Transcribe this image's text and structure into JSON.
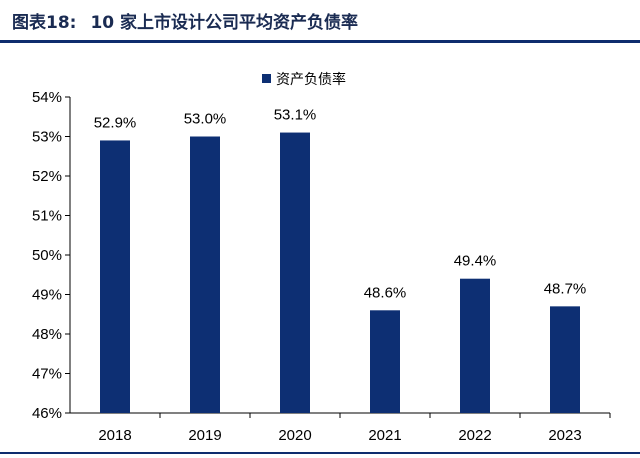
{
  "header": {
    "label": "图表18:",
    "title": "10 家上市设计公司平均资产负债率"
  },
  "colors": {
    "bar": "#0d2f73",
    "header": "#1a2b52",
    "axis": "#000000"
  },
  "chart_data": {
    "type": "bar",
    "title": "",
    "xlabel": "",
    "ylabel": "",
    "categories": [
      "2018",
      "2019",
      "2020",
      "2021",
      "2022",
      "2023"
    ],
    "series": [
      {
        "name": "资产负债率",
        "values": [
          52.9,
          53.0,
          53.1,
          48.6,
          49.4,
          48.7
        ]
      }
    ],
    "data_labels": [
      "52.9%",
      "53.0%",
      "53.1%",
      "48.6%",
      "49.4%",
      "48.7%"
    ],
    "ylim": [
      46,
      54
    ],
    "yticks": [
      46,
      47,
      48,
      49,
      50,
      51,
      52,
      53,
      54
    ],
    "ytick_labels": [
      "46%",
      "47%",
      "48%",
      "49%",
      "50%",
      "51%",
      "52%",
      "53%",
      "54%"
    ],
    "grid": false,
    "legend_position": "top-center"
  }
}
